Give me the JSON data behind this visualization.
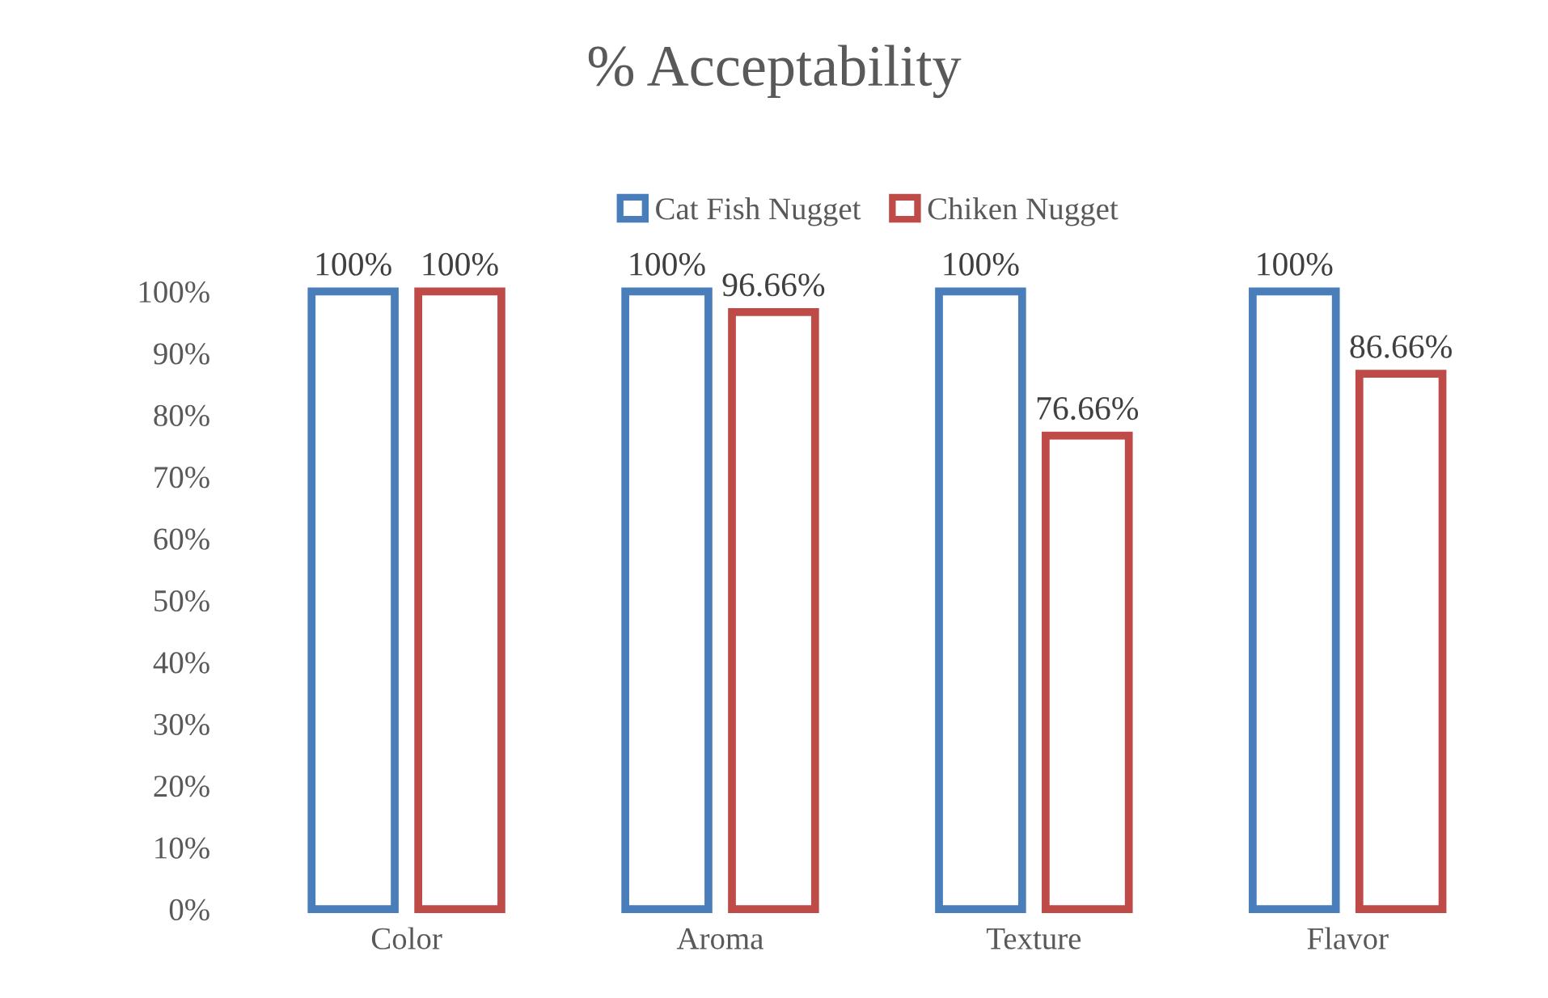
{
  "chart_data": {
    "type": "bar",
    "title": "% Acceptability",
    "categories": [
      "Color",
      "Aroma",
      "Texture",
      "Flavor"
    ],
    "series": [
      {
        "name": "Cat Fish Nugget",
        "color": "#4a7ebb",
        "values": [
          100,
          100,
          100,
          100
        ],
        "value_labels": [
          "100%",
          "100%",
          "100%",
          "100%"
        ]
      },
      {
        "name": "Chiken Nugget",
        "color": "#be4b48",
        "values": [
          100,
          96.66,
          76.66,
          86.66
        ],
        "value_labels": [
          "100%",
          "96.66%",
          "76.66%",
          "86.66%"
        ]
      }
    ],
    "ylim": [
      0,
      100
    ],
    "yticks": [
      {
        "value": 0,
        "label": "0%"
      },
      {
        "value": 10,
        "label": "10%"
      },
      {
        "value": 20,
        "label": "20%"
      },
      {
        "value": 30,
        "label": "30%"
      },
      {
        "value": 40,
        "label": "40%"
      },
      {
        "value": 50,
        "label": "50%"
      },
      {
        "value": 60,
        "label": "60%"
      },
      {
        "value": 70,
        "label": "70%"
      },
      {
        "value": 80,
        "label": "80%"
      },
      {
        "value": 90,
        "label": "90%"
      },
      {
        "value": 100,
        "label": "100%"
      }
    ],
    "grid": false,
    "legend": "top"
  }
}
